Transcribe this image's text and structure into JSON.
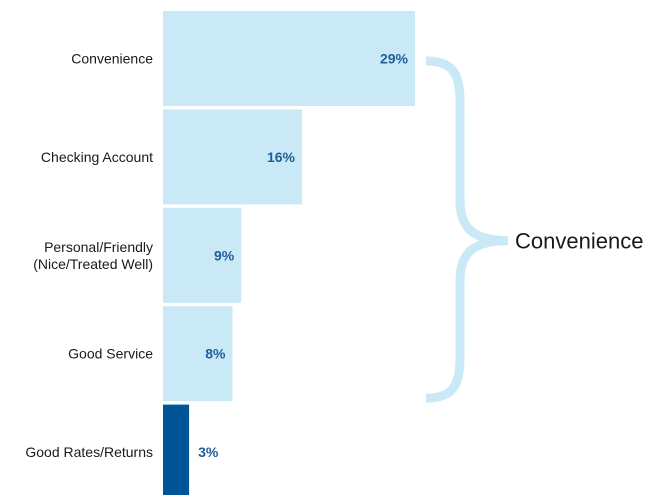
{
  "chart_data": {
    "type": "bar",
    "orientation": "horizontal",
    "categories": [
      [
        "Convenience"
      ],
      [
        "Checking Account"
      ],
      [
        "Personal/Friendly",
        "(Nice/Treated Well)"
      ],
      [
        "Good Service"
      ],
      [
        "Good Rates/Returns"
      ]
    ],
    "values": [
      29,
      16,
      9,
      8,
      3
    ],
    "value_labels": [
      "29%",
      "16%",
      "9%",
      "8%",
      "3%"
    ],
    "unit": "%",
    "xlim": [
      0,
      29
    ],
    "bar_colors": [
      "#c9e9f6",
      "#c9e9f6",
      "#c9e9f6",
      "#c9e9f6",
      "#005596"
    ],
    "grid": false,
    "annotation": {
      "type": "brace",
      "label": "Convenience",
      "spans_categories": [
        0,
        1,
        2,
        3
      ],
      "color": "#c9e9f6"
    }
  },
  "colors": {
    "label_text": "#1a1a1a",
    "value_text": "#1f5f9a"
  }
}
